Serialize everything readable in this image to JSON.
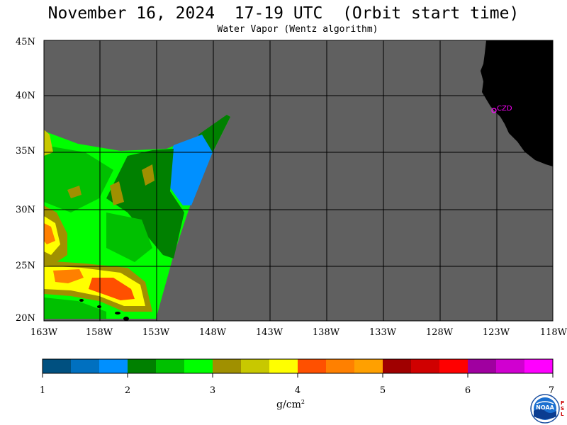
{
  "header": {
    "title": "November 16, 2024  17-19 UTC  (Orbit start time)",
    "subtitle": "Water Vapor (Wentz algorithm)"
  },
  "map": {
    "lat_labels": [
      "45N",
      "40N",
      "35N",
      "30N",
      "25N",
      "20N"
    ],
    "lon_labels": [
      "163W",
      "158W",
      "153W",
      "148W",
      "143W",
      "138W",
      "133W",
      "128W",
      "123W",
      "118W"
    ],
    "station_label": "CZD",
    "colors": {
      "no_data": "#606060",
      "land": "#000000",
      "grid": "#000000",
      "station": "#ff00ff"
    }
  },
  "colorbar": {
    "colors": [
      "#005080",
      "#0070c0",
      "#0090ff",
      "#008000",
      "#00c000",
      "#00ff00",
      "#a09000",
      "#c8c800",
      "#ffff00",
      "#ff5000",
      "#ff8000",
      "#ffa000",
      "#a00000",
      "#d00000",
      "#ff0000",
      "#a000a0",
      "#d000d0",
      "#ff00ff"
    ],
    "tick_labels": [
      "1",
      "2",
      "3",
      "4",
      "5",
      "6",
      "7"
    ],
    "units": "g/cm",
    "units_exp": "2"
  },
  "logo": {
    "text": "NOAA",
    "side_text": [
      "P",
      "S",
      "L"
    ]
  }
}
